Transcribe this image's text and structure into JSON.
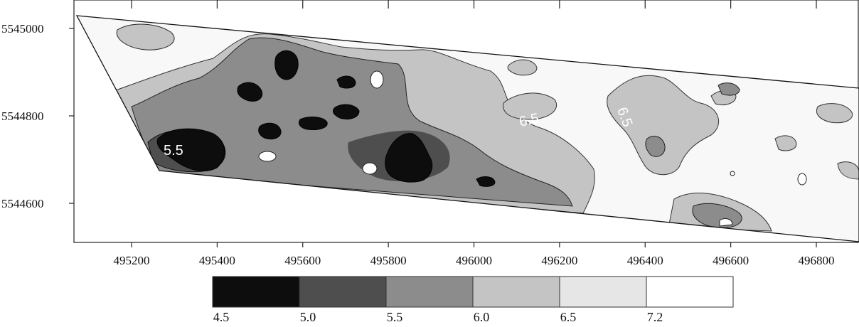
{
  "map": {
    "x_axis": {
      "ticks": [
        "495200",
        "495400",
        "495600",
        "495800",
        "496000",
        "496200",
        "496400",
        "496600",
        "496800"
      ]
    },
    "y_axis": {
      "ticks": [
        "5545000",
        "5544800",
        "5544600"
      ]
    },
    "contour_labels": [
      {
        "id": "west",
        "text": "5.5"
      },
      {
        "id": "center",
        "text": "6.5"
      },
      {
        "id": "east",
        "text": "6.5"
      }
    ]
  },
  "legend": {
    "colors": [
      "#0d0d0d",
      "#4e4e4e",
      "#8c8c8c",
      "#c4c4c4",
      "#e6e6e6",
      "#ffffff"
    ],
    "labels": [
      "4.5",
      "5.0",
      "5.5",
      "6.0",
      "6.5",
      "7.2"
    ]
  }
}
